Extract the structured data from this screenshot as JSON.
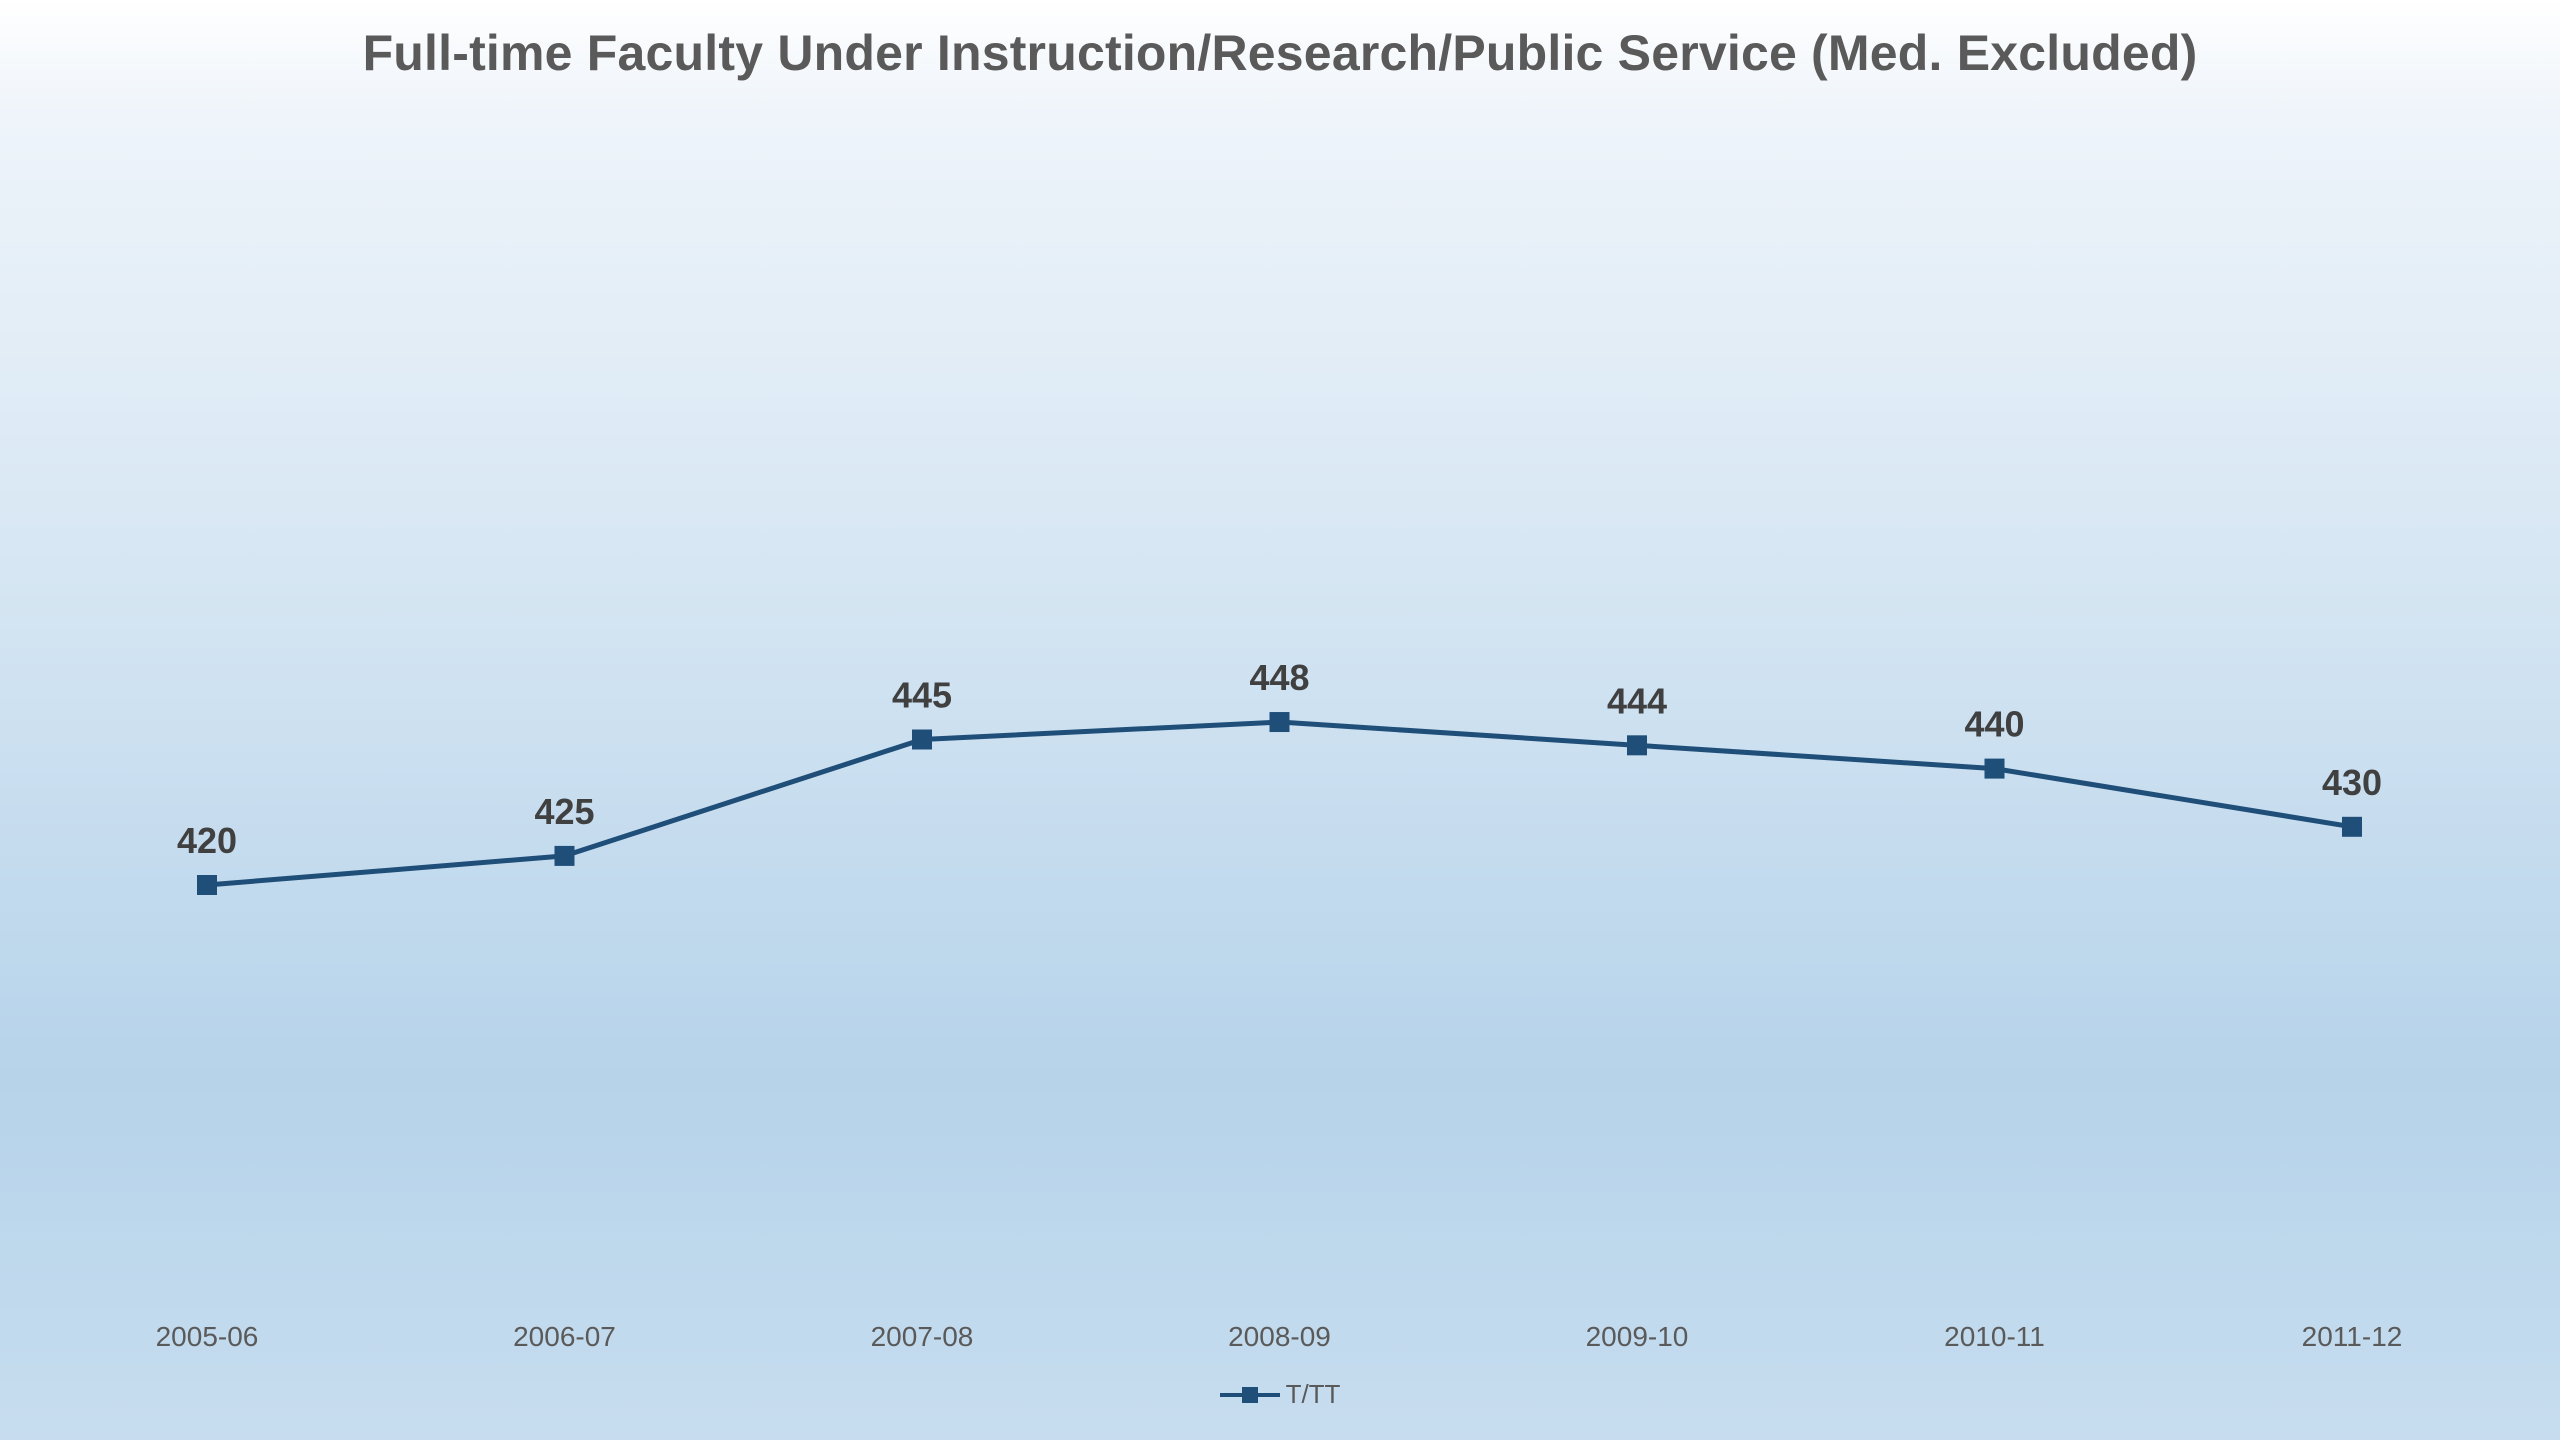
{
  "colors": {
    "series": "#1f4e79",
    "text": "#5a5a5a",
    "label": "#404040"
  },
  "chart_data": {
    "type": "line",
    "title": "Full-time Faculty Under Instruction/Research/Public Service (Med. Excluded)",
    "xlabel": "",
    "ylabel": "",
    "categories": [
      "2005-06",
      "2006-07",
      "2007-08",
      "2008-09",
      "2009-10",
      "2010-11",
      "2011-12"
    ],
    "series": [
      {
        "name": "T/TT",
        "values": [
          420,
          425,
          445,
          448,
          444,
          440,
          430
        ],
        "marker": "square"
      }
    ],
    "data_labels": true,
    "grid": false,
    "legend": "bottom"
  }
}
